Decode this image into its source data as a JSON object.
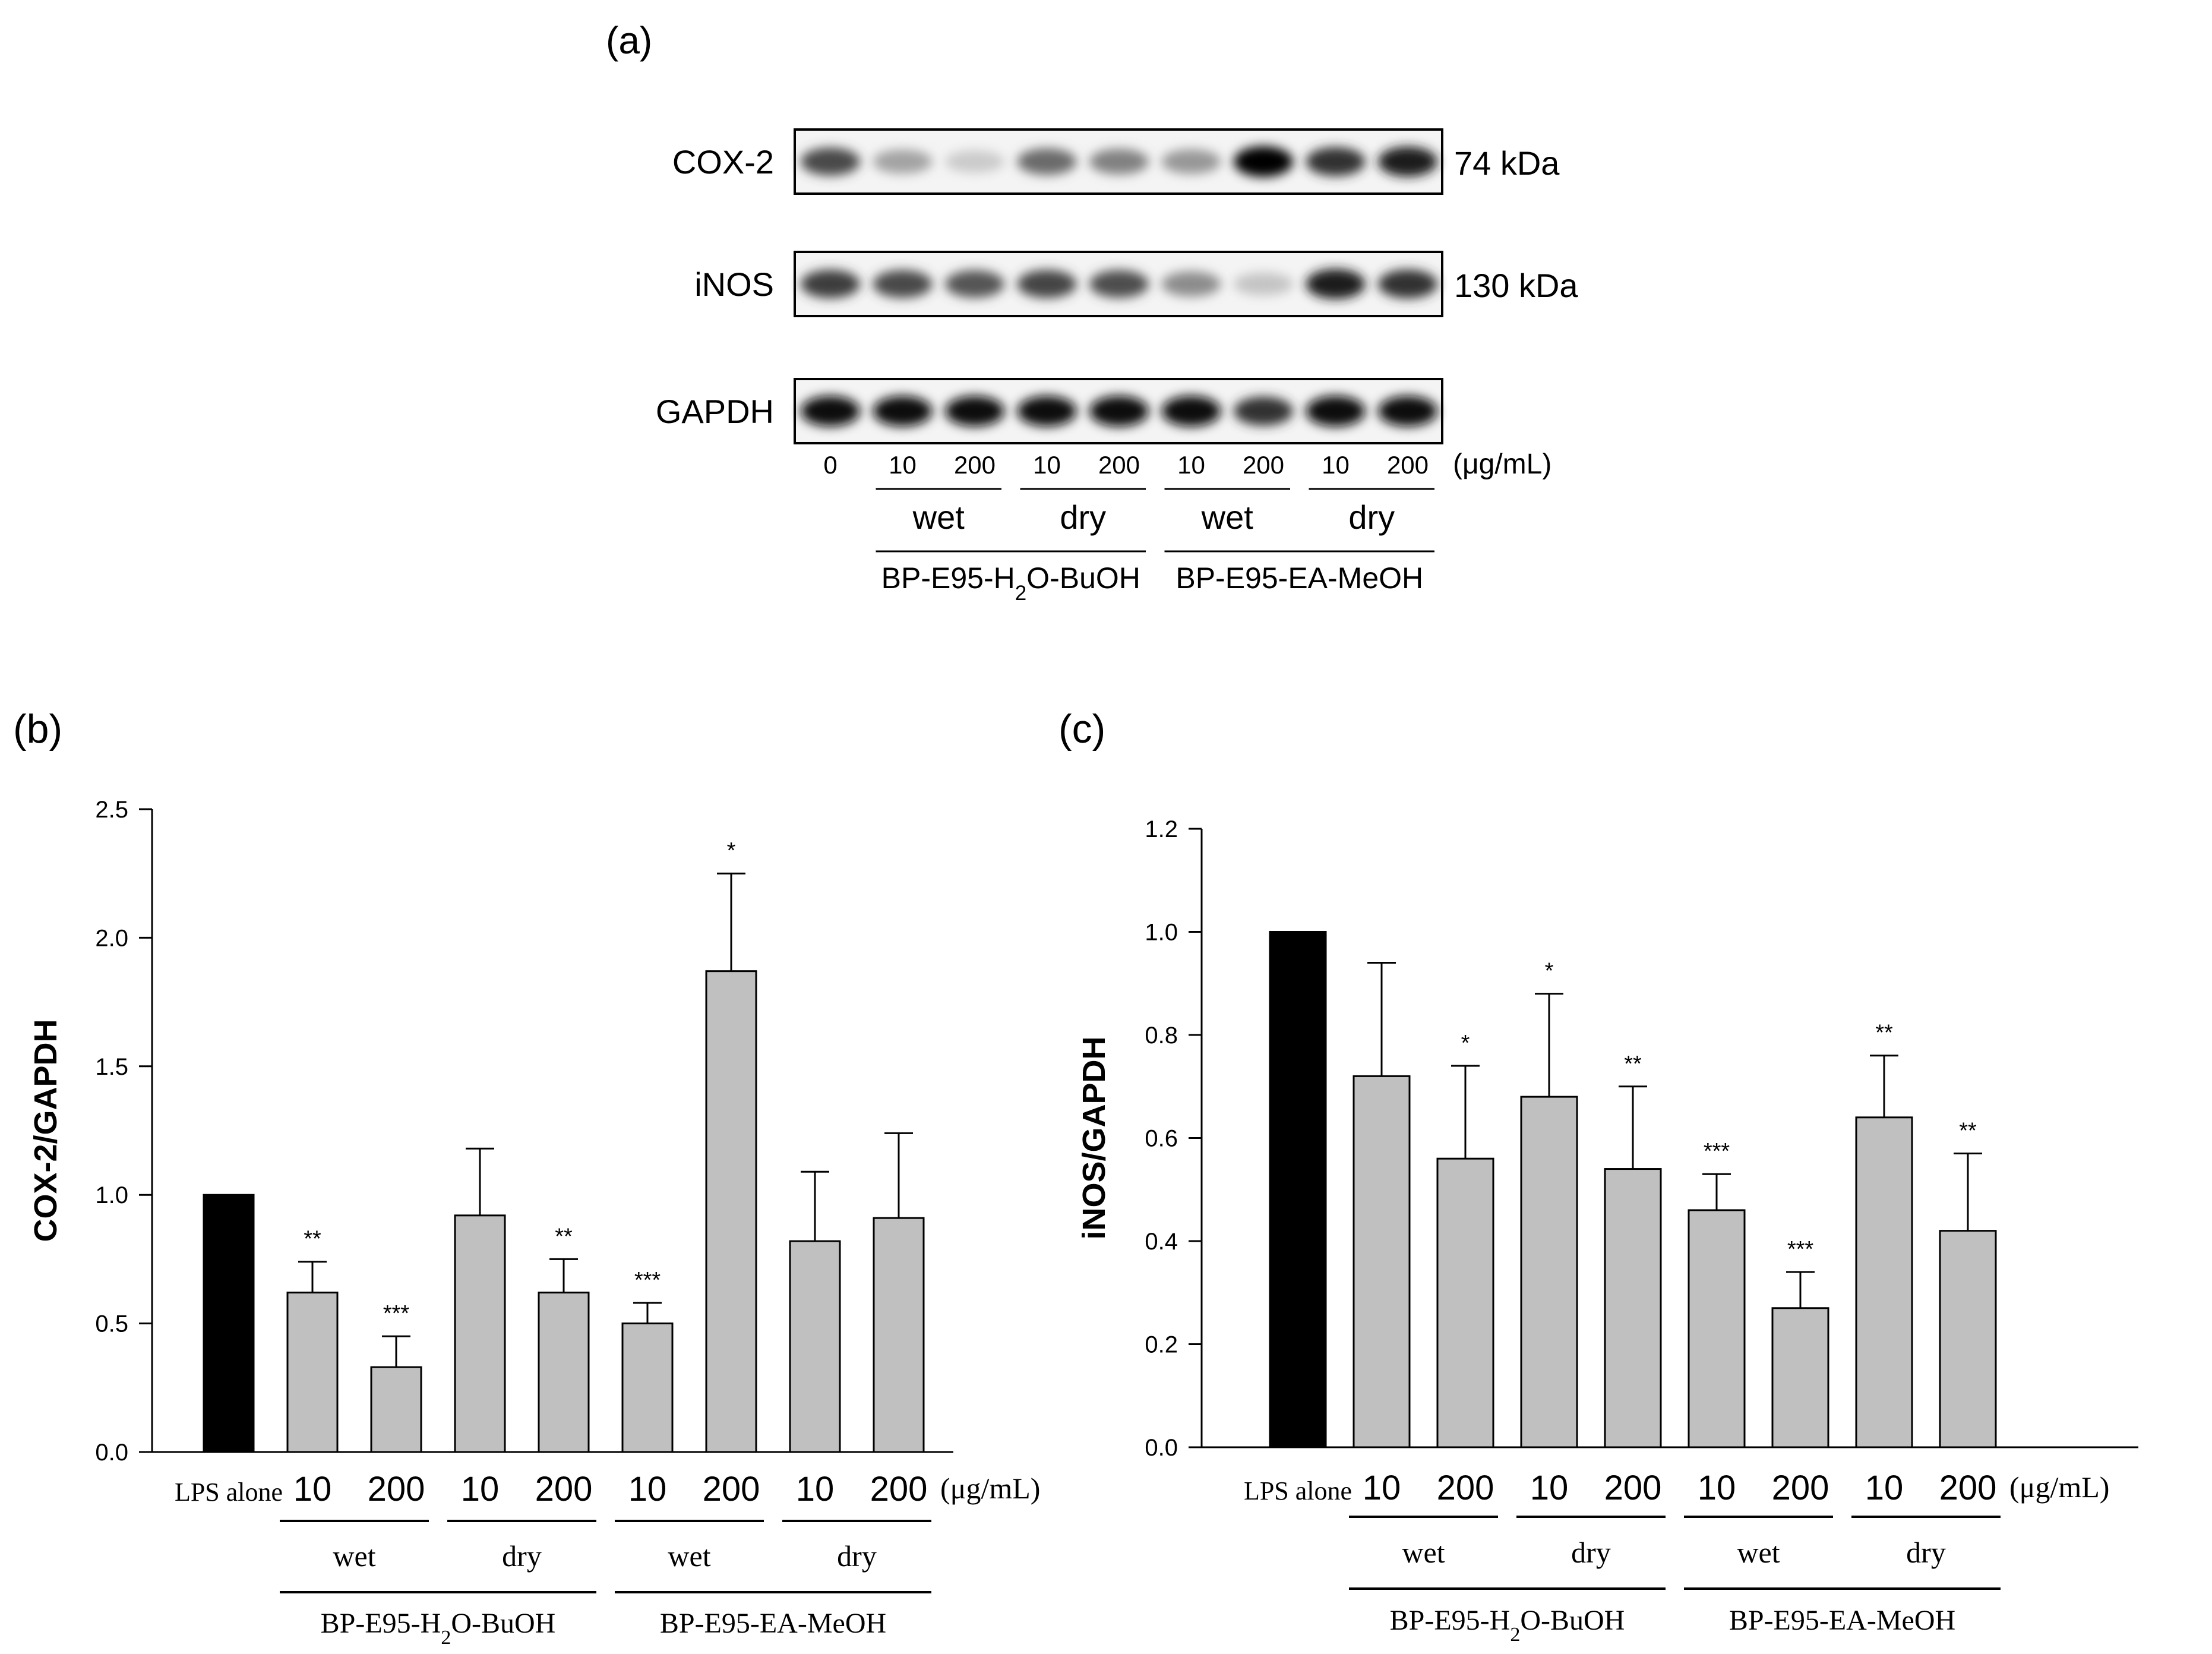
{
  "panel_a": {
    "label": "(a)",
    "blots": [
      {
        "name": "COX-2",
        "size": "74 kDa",
        "intensity": [
          0.7,
          0.3,
          0.12,
          0.55,
          0.45,
          0.35,
          1.0,
          0.8,
          0.9
        ]
      },
      {
        "name": "iNOS",
        "size": "130 kDa",
        "intensity": [
          0.75,
          0.7,
          0.65,
          0.72,
          0.68,
          0.4,
          0.15,
          0.9,
          0.8
        ]
      },
      {
        "name": "GAPDH",
        "size": "",
        "intensity": [
          0.95,
          0.95,
          0.95,
          0.95,
          0.98,
          0.98,
          0.8,
          0.98,
          0.95
        ]
      }
    ],
    "lanes": [
      "0",
      "10",
      "200",
      "10",
      "200",
      "10",
      "200",
      "10",
      "200"
    ],
    "unit": "(μg/mL)",
    "conditions": [
      "wet",
      "dry",
      "wet",
      "dry"
    ],
    "extract_labels": [
      {
        "pre": "BP-E95-H",
        "sub": "2",
        "post": "O-BuOH"
      },
      {
        "pre": "BP-E95-EA-MeOH",
        "sub": "",
        "post": ""
      }
    ]
  },
  "chart_data": [
    {
      "type": "bar",
      "panel_label": "(b)",
      "ylabel": "COX-2/GAPDH",
      "ylim": [
        0,
        2.5
      ],
      "yticks": [
        "0.0",
        "0.5",
        "1.0",
        "1.5",
        "2.0",
        "2.5"
      ],
      "categories": [
        "LPS alone",
        "10",
        "200",
        "10",
        "200",
        "10",
        "200",
        "10",
        "200"
      ],
      "values": [
        1.0,
        0.62,
        0.33,
        0.92,
        0.62,
        0.5,
        1.87,
        0.82,
        0.91
      ],
      "errors": [
        0.0,
        0.12,
        0.12,
        0.26,
        0.13,
        0.08,
        0.38,
        0.27,
        0.33
      ],
      "significance": [
        "",
        "**",
        "***",
        "",
        "**",
        "***",
        "*",
        "",
        ""
      ],
      "colors": [
        "#000000",
        "#c0c0c0",
        "#c0c0c0",
        "#c0c0c0",
        "#c0c0c0",
        "#c0c0c0",
        "#c0c0c0",
        "#c0c0c0",
        "#c0c0c0"
      ],
      "unit": "(μg/mL)",
      "conditions": [
        "wet",
        "dry",
        "wet",
        "dry"
      ],
      "extract_labels": [
        {
          "pre": "BP-E95-H",
          "sub": "2",
          "post": "O-BuOH"
        },
        {
          "pre": "BP-E95-EA-MeOH",
          "sub": "",
          "post": ""
        }
      ]
    },
    {
      "type": "bar",
      "panel_label": "(c)",
      "ylabel": "iNOS/GAPDH",
      "ylim": [
        0,
        1.2
      ],
      "yticks": [
        "0.0",
        "0.2",
        "0.4",
        "0.6",
        "0.8",
        "1.0",
        "1.2"
      ],
      "categories": [
        "LPS alone",
        "10",
        "200",
        "10",
        "200",
        "10",
        "200",
        "10",
        "200"
      ],
      "values": [
        1.0,
        0.72,
        0.56,
        0.68,
        0.54,
        0.46,
        0.27,
        0.64,
        0.42
      ],
      "errors": [
        0.0,
        0.22,
        0.18,
        0.2,
        0.16,
        0.07,
        0.07,
        0.12,
        0.15
      ],
      "significance": [
        "",
        "",
        "*",
        "*",
        "**",
        "***",
        "***",
        "**",
        "**"
      ],
      "colors": [
        "#000000",
        "#c0c0c0",
        "#c0c0c0",
        "#c0c0c0",
        "#c0c0c0",
        "#c0c0c0",
        "#c0c0c0",
        "#c0c0c0",
        "#c0c0c0"
      ],
      "unit": "(μg/mL)",
      "conditions": [
        "wet",
        "dry",
        "wet",
        "dry"
      ],
      "extract_labels": [
        {
          "pre": "BP-E95-H",
          "sub": "2",
          "post": "O-BuOH"
        },
        {
          "pre": "BP-E95-EA-MeOH",
          "sub": "",
          "post": ""
        }
      ]
    }
  ]
}
